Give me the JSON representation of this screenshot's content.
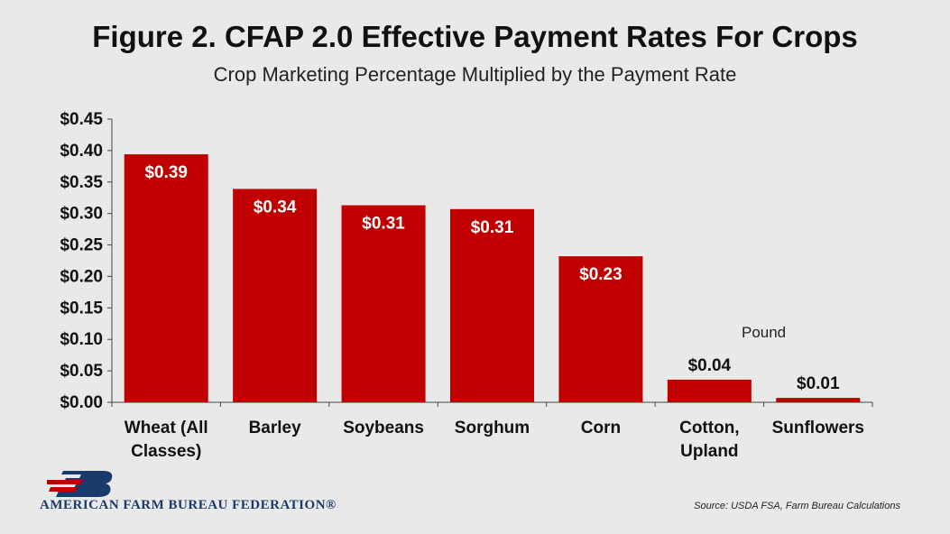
{
  "chart_data": {
    "type": "bar",
    "title": "Figure 2. CFAP 2.0 Effective Payment Rates For Crops",
    "subtitle": "Crop Marketing Percentage Multiplied by the Payment Rate",
    "categories": [
      [
        "Wheat (All",
        "Classes)"
      ],
      [
        "Barley"
      ],
      [
        "Soybeans"
      ],
      [
        "Sorghum"
      ],
      [
        "Corn"
      ],
      [
        "Cotton,",
        "Upland"
      ],
      [
        "Sunflowers"
      ]
    ],
    "values": [
      0.394,
      0.339,
      0.313,
      0.307,
      0.232,
      0.036,
      0.007
    ],
    "data_labels": [
      "$0.39",
      "$0.34",
      "$0.31",
      "$0.31",
      "$0.23",
      "$0.04",
      "$0.01"
    ],
    "ylim": [
      0,
      0.45
    ],
    "yticks": [
      0,
      0.05,
      0.1,
      0.15,
      0.2,
      0.25,
      0.3,
      0.35,
      0.4,
      0.45
    ],
    "ytick_labels": [
      "$0.00",
      "$0.05",
      "$0.10",
      "$0.15",
      "$0.20",
      "$0.25",
      "$0.30",
      "$0.35",
      "$0.40",
      "$0.45"
    ],
    "annotation": "Pound",
    "bar_color": "#c00000",
    "grid": false
  },
  "logo": {
    "name": "AMERICAN FARM BUREAU FEDERATION®",
    "icon": "fb-logo-icon"
  },
  "source": "Source: USDA FSA, Farm Bureau Calculations"
}
